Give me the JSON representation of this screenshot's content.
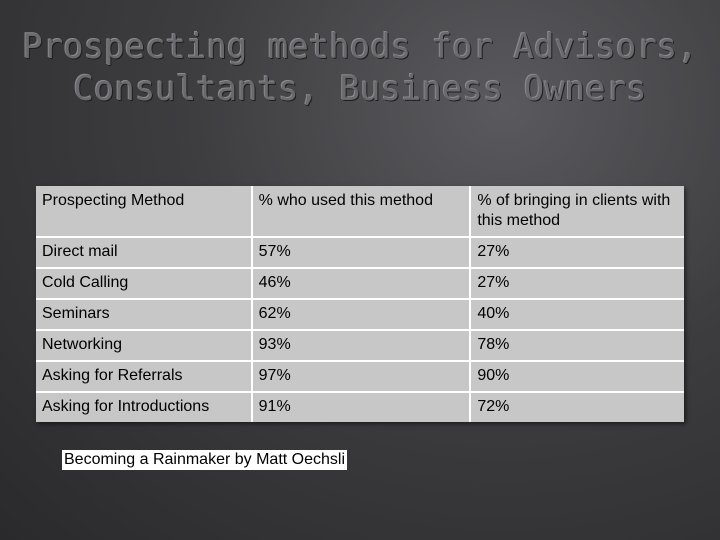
{
  "title": {
    "line1": "Prospecting methods for Advisors,",
    "line2": "Consultants, Business Owners"
  },
  "table": {
    "headers": [
      "Prospecting Method",
      "% who used this method",
      "% of bringing in clients with this method"
    ],
    "rows": [
      [
        "Direct mail",
        "57%",
        "27%"
      ],
      [
        "Cold Calling",
        "46%",
        "27%"
      ],
      [
        "Seminars",
        "62%",
        "40%"
      ],
      [
        "Networking",
        "93%",
        "78%"
      ],
      [
        "Asking for Referrals",
        "97%",
        "90%"
      ],
      [
        "Asking for Introductions",
        "91%",
        "72%"
      ]
    ]
  },
  "citation": "Becoming a Rainmaker by Matt Oechsli",
  "colors": {
    "background": "#3d3d40",
    "title": "#6a6a6e",
    "cell": "#c7c7c7",
    "grid": "#ffffff"
  }
}
